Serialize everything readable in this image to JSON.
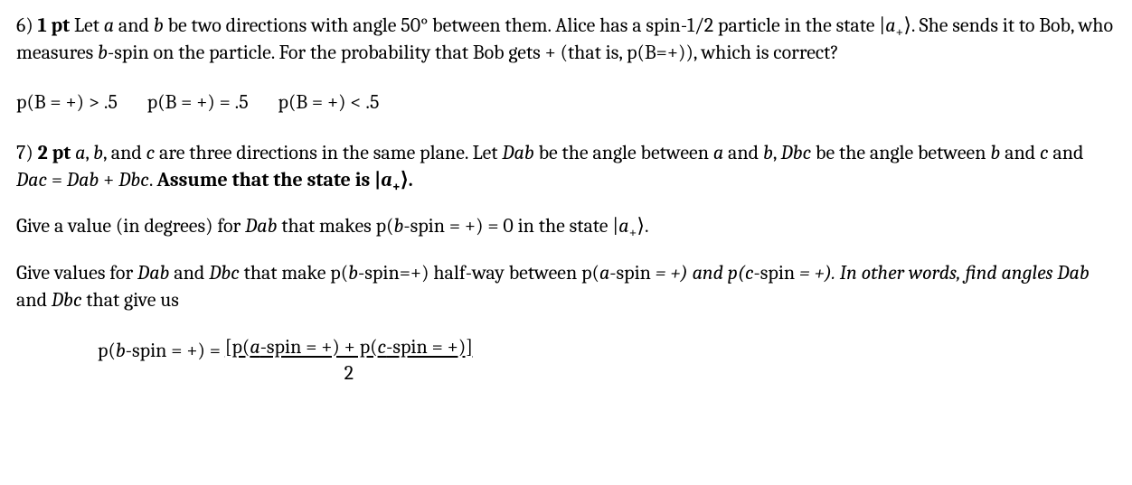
{
  "q6": {
    "number": "6)",
    "points": "1 pt",
    "prompt_1": " Let ",
    "a": "a",
    "prompt_2": " and ",
    "b": "b",
    "prompt_3": " be two directions with angle 50° between them. Alice has a spin-1/2 particle in the state |",
    "state_a": "a",
    "state_sub": "+",
    "prompt_4": "⟩. She sends it to Bob, who measures ",
    "b2": "b",
    "prompt_5": "-spin on the particle. For the probability that Bob gets + (that is, p(B=+)), which is correct?",
    "options": {
      "opt1": "p(B = +) > .5",
      "opt2": "p(B = +) = .5",
      "opt3": "p(B = +) < .5"
    }
  },
  "q7": {
    "number": "7)",
    "points": "2 pt",
    "lead_space": " ",
    "a": "a",
    "comma1": ", ",
    "b": "b",
    "comma2": ", and ",
    "c": "c",
    "prompt_1": " are three directions in the same plane. Let ",
    "Dab": "Dab",
    "prompt_2": " be the angle between ",
    "a2": "a",
    "prompt_3": " and ",
    "b2": "b",
    "prompt_4": ", ",
    "Dbc": "Dbc",
    "prompt_5": " be the angle between ",
    "b3": "b",
    "prompt_6": " and ",
    "c2": "c",
    "prompt_7": " and ",
    "Dac": "Dac",
    "prompt_8": " = ",
    "Dab2": "Dab",
    "prompt_9": " + ",
    "Dbc2": "Dbc",
    "prompt_10": ". ",
    "assume": "Assume that the state is |",
    "state_a": "a",
    "state_sub": "+",
    "assume_end": "⟩.",
    "sub1": {
      "t1": "Give a value (in degrees) for ",
      "Dab": "Dab",
      "t2": " that makes p(",
      "b": "b",
      "t3": "-spin = +) = 0 in the state |",
      "state_a": "a",
      "state_sub": "+",
      "t4": "⟩."
    },
    "sub2": {
      "t1": " Give values for ",
      "Dab": "Dab",
      "t2": " and ",
      "Dbc": "Dbc",
      "t3": " that make p(",
      "b": "b",
      "t4": "-spin=+) half-way between p(",
      "a": "a",
      "t5": "-spin",
      "t6": " = +) and p(",
      "c": "c",
      "t7": "-spin",
      "t8": " = +). In other words, find angles ",
      "Dab2": "Dab",
      "t9": " and ",
      "Dbc2": "Dbc",
      "t10": " that give us"
    },
    "eq": {
      "lhs1": "p(",
      "b": "b",
      "lhs2": "-spin = +) =  ",
      "num1": "[p(",
      "a": "a",
      "num2": "-spin = +) + p(",
      "c": "c",
      "num3": "-spin = +)]",
      "den": "2"
    }
  }
}
